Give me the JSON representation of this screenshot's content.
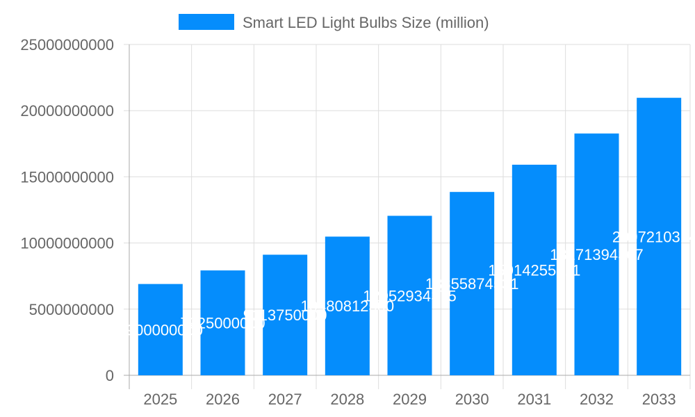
{
  "chart_data": {
    "type": "bar",
    "categories": [
      "2025",
      "2026",
      "2027",
      "2028",
      "2029",
      "2030",
      "2031",
      "2032",
      "2033"
    ],
    "series": [
      {
        "name": "Smart LED Light Bulbs Size (million)",
        "values": [
          6900000000,
          7925000000,
          9113750000,
          10480812500,
          12052934375,
          13855874531,
          15914255711,
          18271394367,
          20972103143
        ]
      }
    ],
    "ylim": [
      0,
      25000000000
    ],
    "yticks": [
      "0",
      "5000000000",
      "10000000000",
      "15000000000",
      "20000000000",
      "25000000000"
    ],
    "grid": true,
    "legend": "top",
    "color": "#058DFC"
  }
}
